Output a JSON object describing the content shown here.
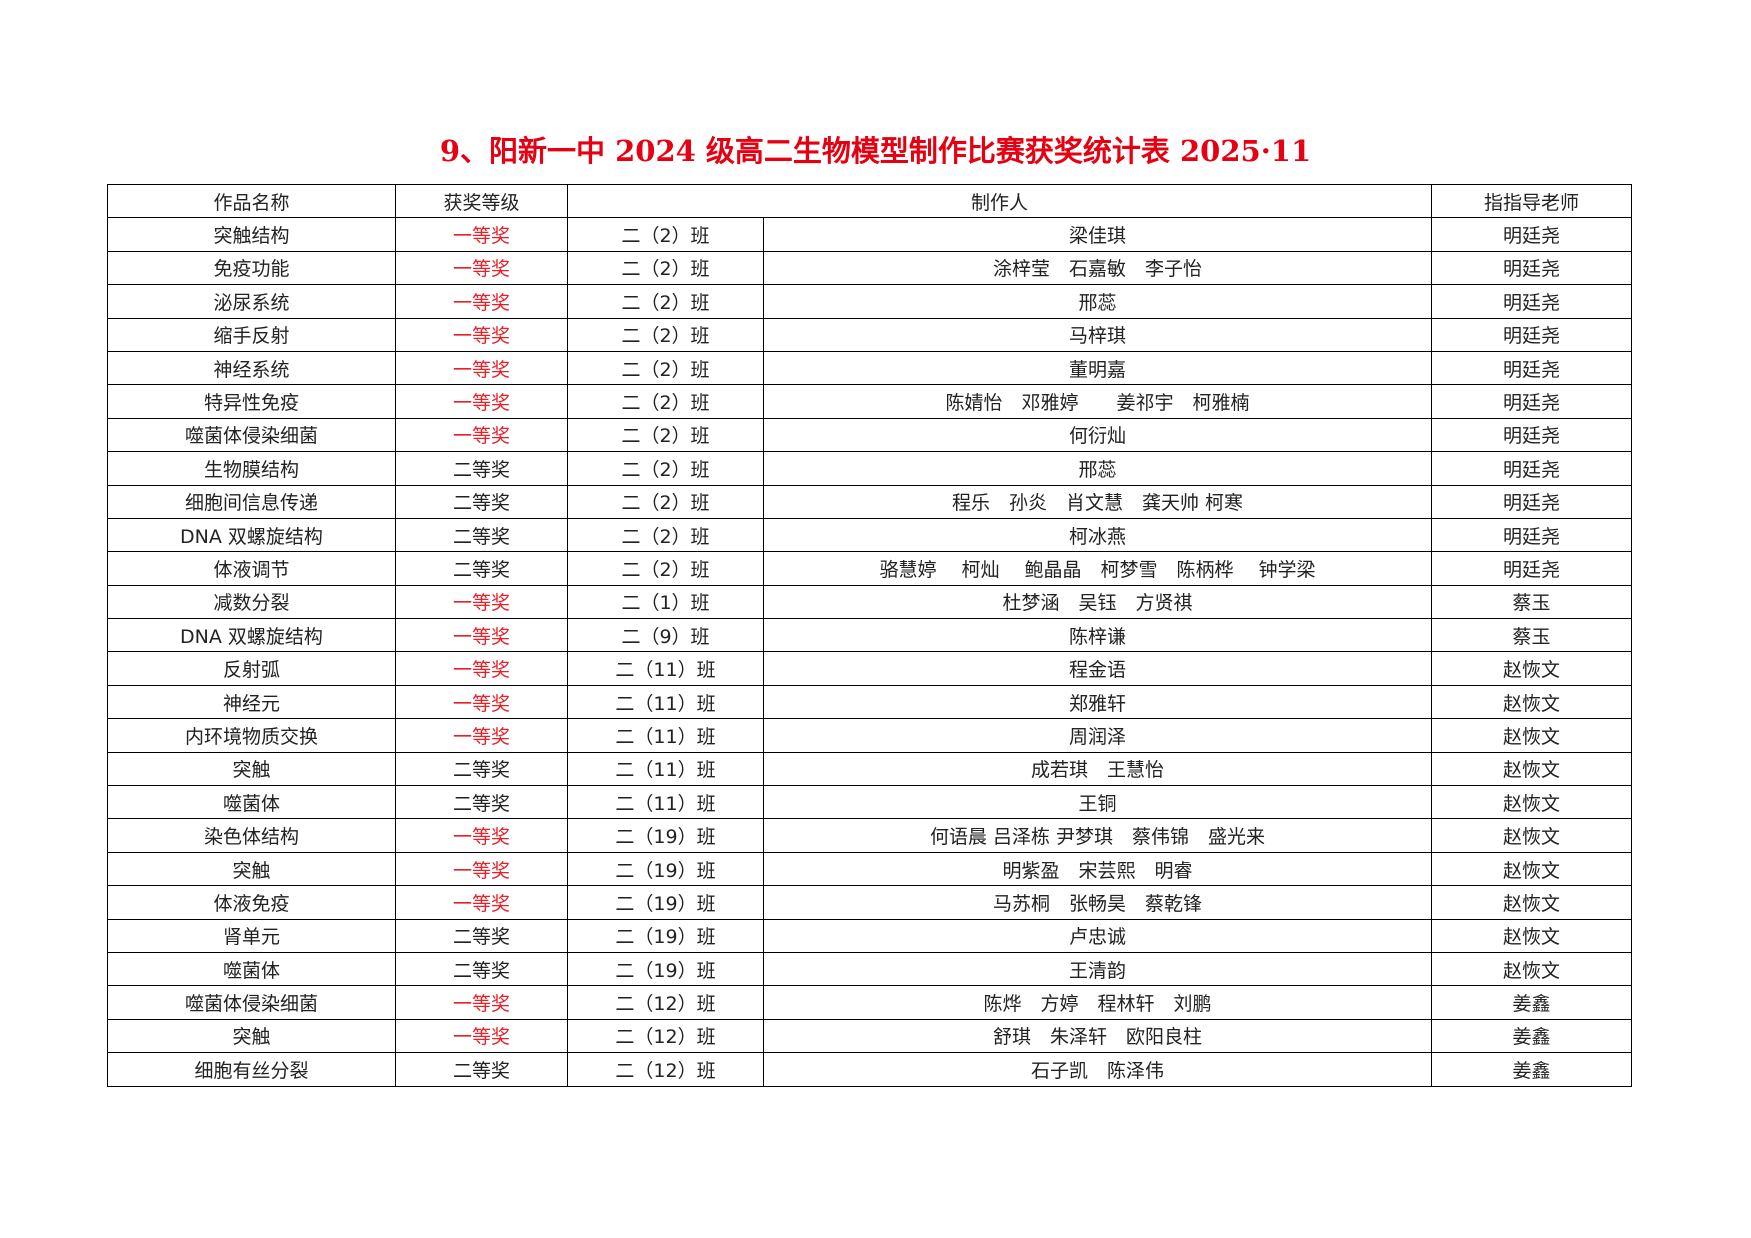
{
  "title": "9、阳新一中 2024 级高二生物模型制作比赛获奖统计表 2025·11",
  "colors": {
    "title": "#e60012",
    "first_prize": "#e8202a",
    "second_prize": "#222222"
  },
  "headers": {
    "work": "作品名称",
    "award": "获奖等级",
    "makers": "制作人",
    "teacher": "指指导老师"
  },
  "rows": [
    {
      "work": "突触结构",
      "award": "一等奖",
      "class": "二（2）班",
      "makers": "梁佳琪",
      "teacher": "明廷尧"
    },
    {
      "work": "免疫功能",
      "award": "一等奖",
      "class": "二（2）班",
      "makers": "涂梓莹　石嘉敏　李子怡",
      "teacher": "明廷尧"
    },
    {
      "work": "泌尿系统",
      "award": "一等奖",
      "class": "二（2）班",
      "makers": "邢蕊",
      "teacher": "明廷尧"
    },
    {
      "work": "缩手反射",
      "award": "一等奖",
      "class": "二（2）班",
      "makers": "马梓琪",
      "teacher": "明廷尧"
    },
    {
      "work": "神经系统",
      "award": "一等奖",
      "class": "二（2）班",
      "makers": "董明嘉",
      "teacher": "明廷尧"
    },
    {
      "work": "特异性免疫",
      "award": "一等奖",
      "class": "二（2）班",
      "makers": "陈婧怡　邓雅婷　　姜祁宇　柯雅楠",
      "teacher": "明廷尧"
    },
    {
      "work": "噬菌体侵染细菌",
      "award": "一等奖",
      "class": "二（2）班",
      "makers": "何衍灿",
      "teacher": "明廷尧"
    },
    {
      "work": "生物膜结构",
      "award": "二等奖",
      "class": "二（2）班",
      "makers": "邢蕊",
      "teacher": "明廷尧"
    },
    {
      "work": "细胞间信息传递",
      "award": "二等奖",
      "class": "二（2）班",
      "makers": "程乐　孙炎　肖文慧　龚天帅 柯寒",
      "teacher": "明廷尧"
    },
    {
      "work": "DNA 双螺旋结构",
      "award": "二等奖",
      "class": "二（2）班",
      "makers": "柯冰燕",
      "teacher": "明廷尧"
    },
    {
      "work": "体液调节",
      "award": "二等奖",
      "class": "二（2）班",
      "makers": "骆慧婷　 柯灿　 鲍晶晶　柯梦雪　陈柄桦　 钟学梁",
      "teacher": "明廷尧"
    },
    {
      "work": "减数分裂",
      "award": "一等奖",
      "class": "二（1）班",
      "makers": "杜梦涵　吴钰　方贤祺",
      "teacher": "蔡玉"
    },
    {
      "work": "DNA 双螺旋结构",
      "award": "一等奖",
      "class": "二（9）班",
      "makers": "陈梓谦",
      "teacher": "蔡玉"
    },
    {
      "work": "反射弧",
      "award": "一等奖",
      "class": "二（11）班",
      "makers": "程金语",
      "teacher": "赵恢文"
    },
    {
      "work": "神经元",
      "award": "一等奖",
      "class": "二（11）班",
      "makers": "郑雅轩",
      "teacher": "赵恢文"
    },
    {
      "work": "内环境物质交换",
      "award": "一等奖",
      "class": "二（11）班",
      "makers": "周润泽",
      "teacher": "赵恢文"
    },
    {
      "work": "突触",
      "award": "二等奖",
      "class": "二（11）班",
      "makers": "成若琪　王慧怡",
      "teacher": "赵恢文"
    },
    {
      "work": "噬菌体",
      "award": "二等奖",
      "class": "二（11）班",
      "makers": "王铜",
      "teacher": "赵恢文"
    },
    {
      "work": "染色体结构",
      "award": "一等奖",
      "class": "二（19）班",
      "makers": "何语晨 吕泽栋 尹梦琪　蔡伟锦　盛光来",
      "teacher": "赵恢文"
    },
    {
      "work": "突触",
      "award": "一等奖",
      "class": "二（19）班",
      "makers": "明紫盈　宋芸熙　明睿",
      "teacher": "赵恢文"
    },
    {
      "work": "体液免疫",
      "award": "一等奖",
      "class": "二（19）班",
      "makers": "马苏桐　张畅昊　蔡乾锋",
      "teacher": "赵恢文"
    },
    {
      "work": "肾单元",
      "award": "二等奖",
      "class": "二（19）班",
      "makers": "卢忠诚",
      "teacher": "赵恢文"
    },
    {
      "work": "噬菌体",
      "award": "二等奖",
      "class": "二（19）班",
      "makers": "王清韵",
      "teacher": "赵恢文"
    },
    {
      "work": "噬菌体侵染细菌",
      "award": "一等奖",
      "class": "二（12）班",
      "makers": "陈烨　方婷　程林轩　刘鹏",
      "teacher": "姜鑫"
    },
    {
      "work": "突触",
      "award": "一等奖",
      "class": "二（12）班",
      "makers": "舒琪　朱泽轩　欧阳良柱",
      "teacher": "姜鑫"
    },
    {
      "work": "细胞有丝分裂",
      "award": "二等奖",
      "class": "二（12）班",
      "makers": "石子凯　陈泽伟",
      "teacher": "姜鑫"
    }
  ]
}
